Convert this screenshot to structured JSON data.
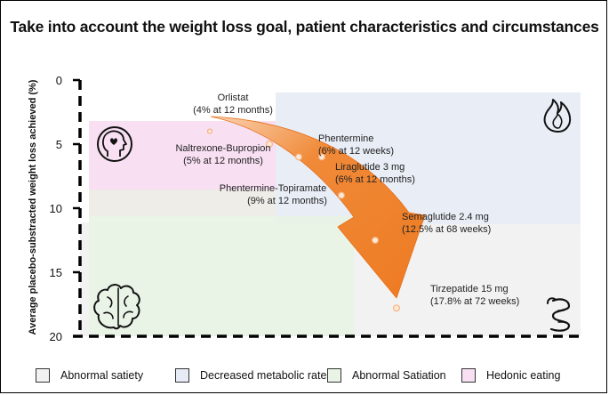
{
  "title": "Take into account the weight loss goal, patient characteristics and circumstances",
  "chart_data": {
    "type": "scatter",
    "ylabel": "Average placebo-substracted weight loss achieved (%)",
    "ylim": [
      0,
      20
    ],
    "yticks": [
      "0",
      "5",
      "10",
      "15",
      "20"
    ],
    "y_inverted": true,
    "points": [
      {
        "name": "Orlistat",
        "detail": "(4% at 12 months)",
        "value": 4
      },
      {
        "name": "Naltrexone-Bupropion",
        "detail": "(5% at 12 months)",
        "value": 5
      },
      {
        "name": "Phentermine",
        "detail": "(6% at 12 weeks)",
        "value": 6
      },
      {
        "name": "Liraglutide 3 mg",
        "detail": "(6% at 12 months)",
        "value": 6
      },
      {
        "name": "Phentermine-Topiramate",
        "detail": "(9% at 12 months)",
        "value": 9
      },
      {
        "name": "Semaglutide 2.4 mg",
        "detail": "(12.5% at 68 weeks)",
        "value": 12.5
      },
      {
        "name": "Tirzepatide 15 mg",
        "detail": "(17.8% at 72 weeks)",
        "value": 17.8
      }
    ],
    "legend": [
      {
        "label": "Abnormal satiety",
        "color": "#f2f2f2"
      },
      {
        "label": "Decreased metabolic rate",
        "color": "#e6ebf6"
      },
      {
        "label": "Abnormal Satiation",
        "color": "#e9f4e6"
      },
      {
        "label": "Hedonic eating",
        "color": "#f8e0f2"
      }
    ],
    "arrow_color": "#f07e2a"
  }
}
